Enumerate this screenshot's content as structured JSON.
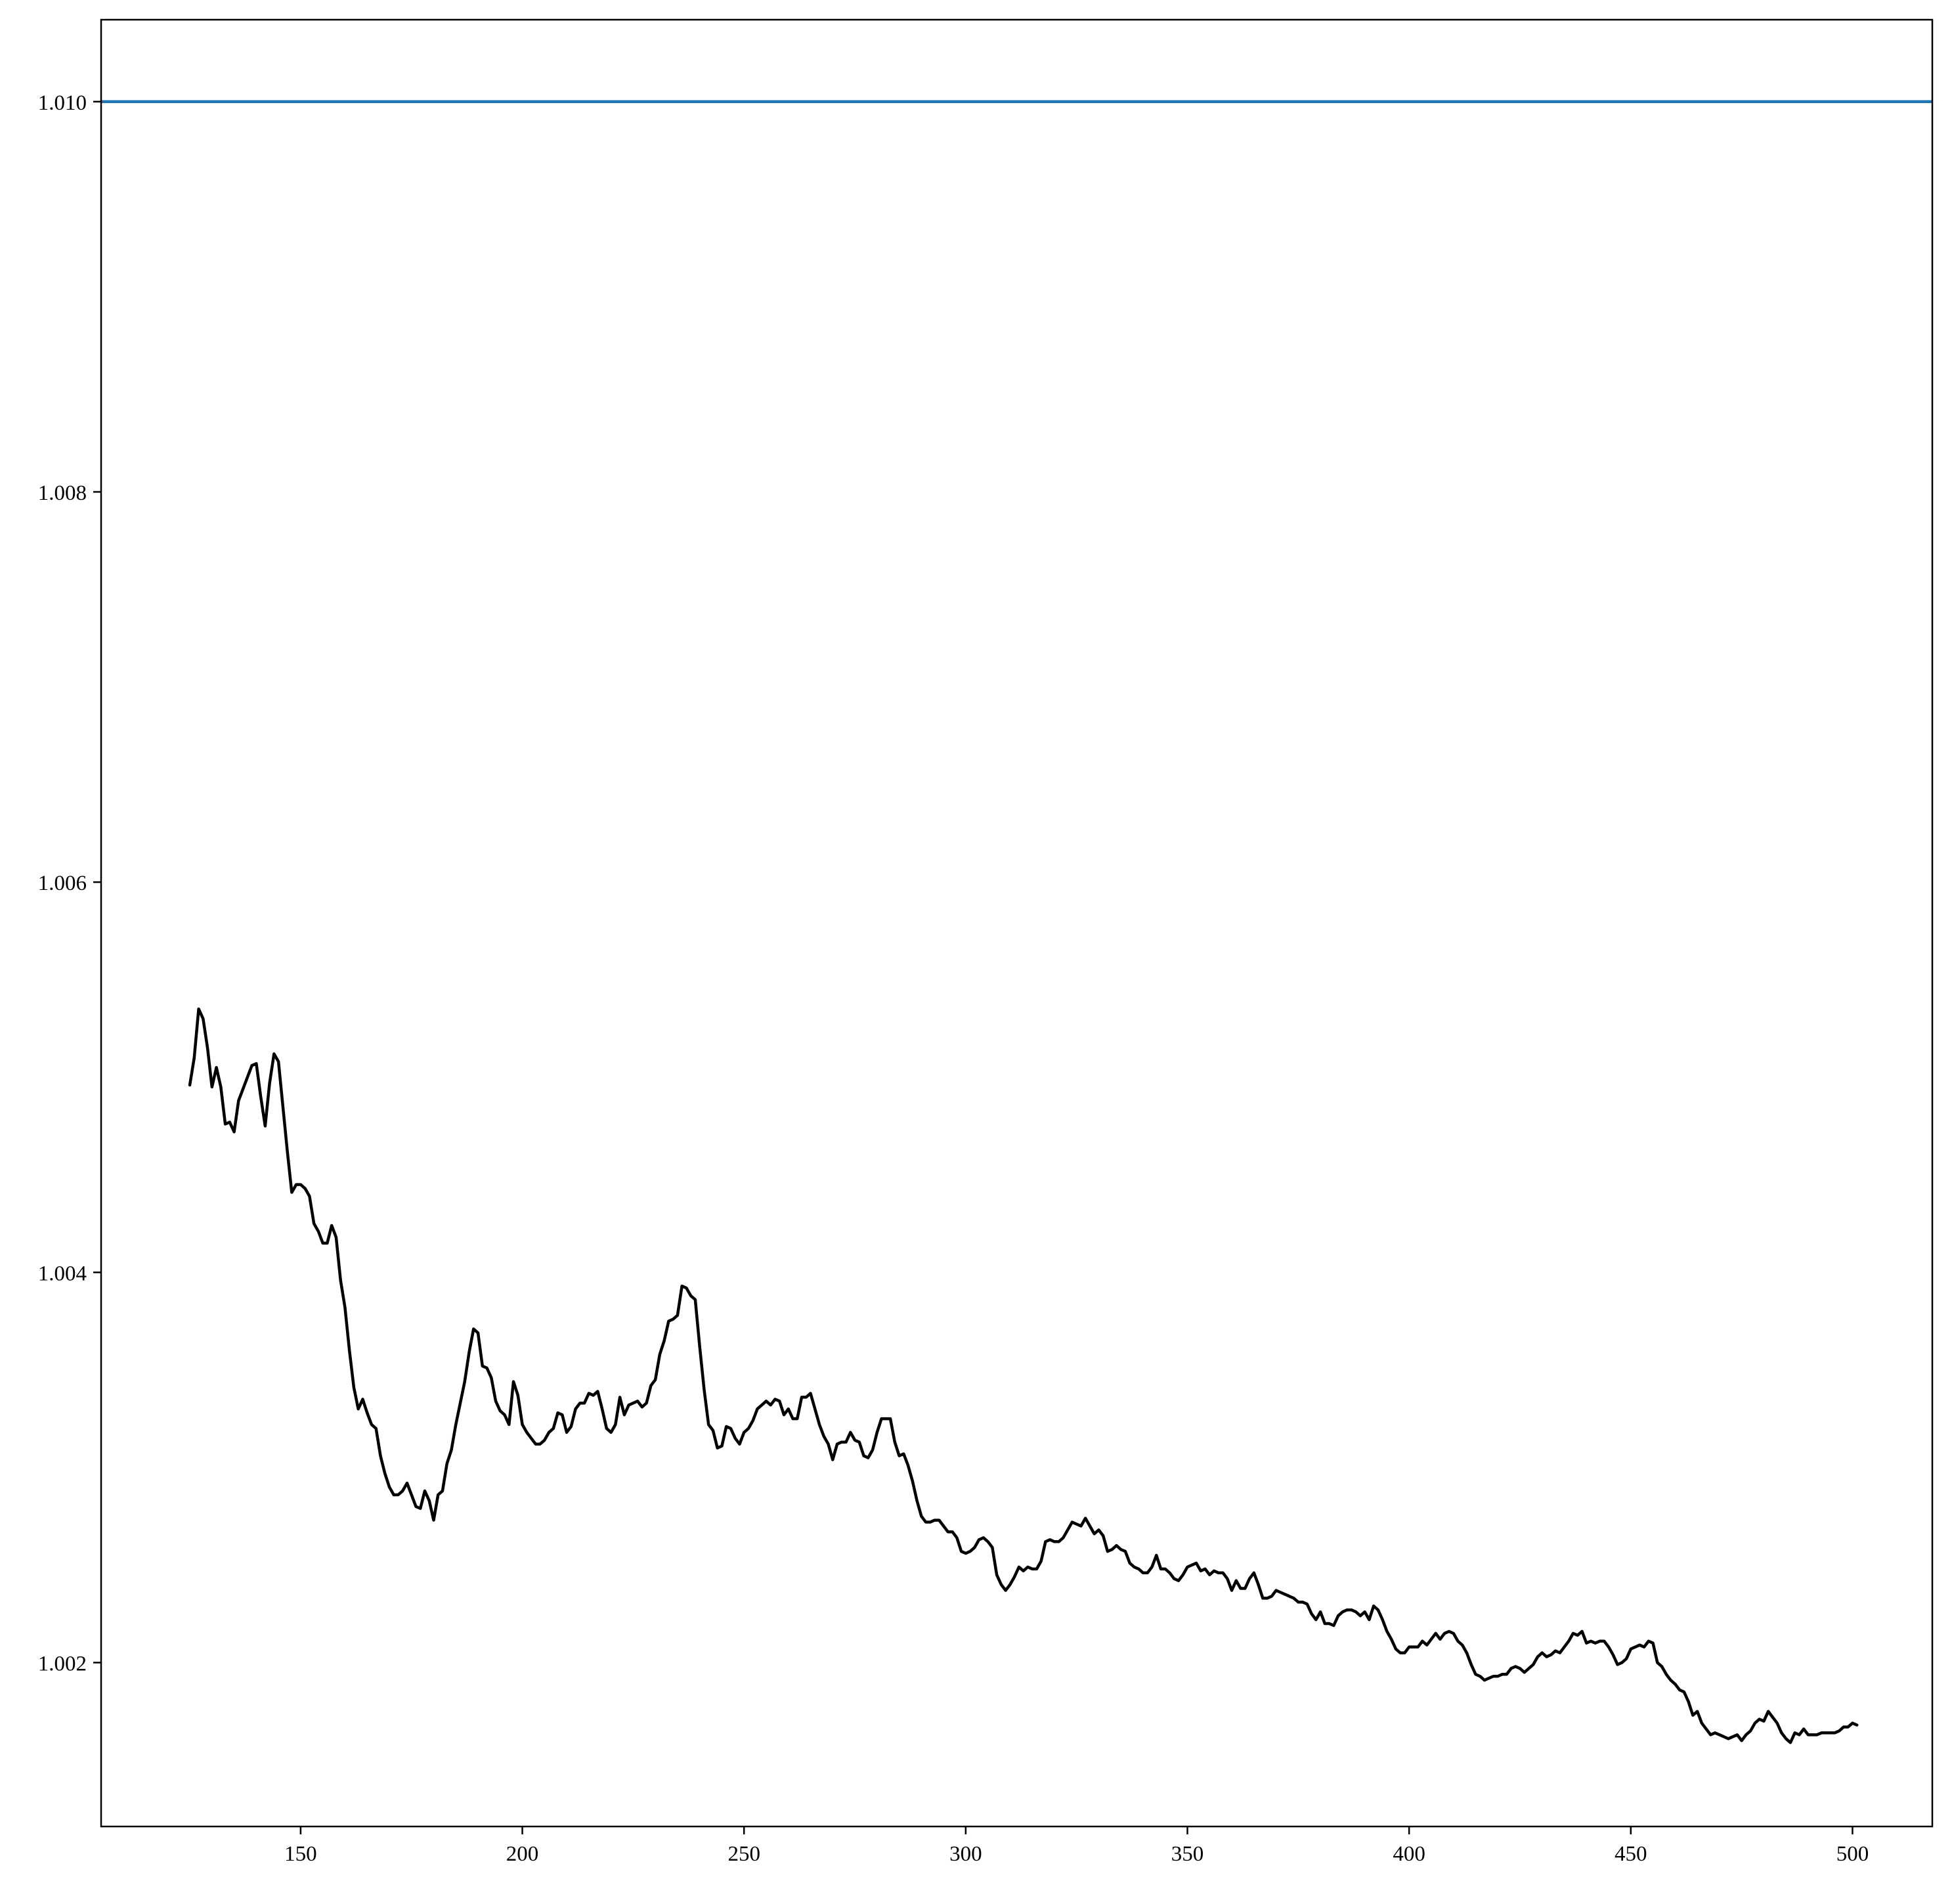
{
  "chart_data": {
    "type": "line",
    "title": "",
    "xlabel": "",
    "ylabel": "",
    "xlim": [
      105,
      518
    ],
    "ylim": [
      1.00116,
      1.01042
    ],
    "grid": false,
    "x_ticks": [
      150,
      200,
      250,
      300,
      350,
      400,
      450,
      500
    ],
    "x_tick_labels": [
      "150",
      "200",
      "250",
      "300",
      "350",
      "400",
      "450",
      "500"
    ],
    "y_ticks": [
      1.002,
      1.004,
      1.006,
      1.008,
      1.01
    ],
    "y_tick_labels": [
      "1.002",
      "1.004",
      "1.006",
      "1.008",
      "1.010"
    ],
    "hline": {
      "y": 1.01,
      "color": "#1f77b4"
    },
    "series": [
      {
        "color": "#000000",
        "x_start": 125,
        "x_step": 1,
        "values": [
          1.00496,
          1.0051,
          1.00535,
          1.0053,
          1.00515,
          1.00495,
          1.00505,
          1.00495,
          1.00476,
          1.00477,
          1.00472,
          1.00488,
          1.00494,
          1.005,
          1.00506,
          1.00507,
          1.0049,
          1.00475,
          1.00497,
          1.00512,
          1.00508,
          1.00485,
          1.00462,
          1.00441,
          1.00445,
          1.00445,
          1.00443,
          1.00439,
          1.00425,
          1.00421,
          1.00415,
          1.00415,
          1.00424,
          1.00418,
          1.00396,
          1.00382,
          1.0036,
          1.00341,
          1.0033,
          1.00335,
          1.00328,
          1.00322,
          1.0032,
          1.00306,
          1.00297,
          1.0029,
          1.00286,
          1.00286,
          1.00288,
          1.00292,
          1.00286,
          1.0028,
          1.00279,
          1.00288,
          1.00283,
          1.00273,
          1.00286,
          1.00288,
          1.00302,
          1.00309,
          1.00322,
          1.00333,
          1.00344,
          1.00359,
          1.00371,
          1.00369,
          1.00352,
          1.00351,
          1.00346,
          1.00334,
          1.00329,
          1.00327,
          1.00322,
          1.00344,
          1.00337,
          1.00322,
          1.00318,
          1.00315,
          1.00312,
          1.00312,
          1.00314,
          1.00318,
          1.0032,
          1.00328,
          1.00327,
          1.00318,
          1.00321,
          1.0033,
          1.00333,
          1.00333,
          1.00338,
          1.00337,
          1.00339,
          1.0033,
          1.0032,
          1.00318,
          1.00322,
          1.00336,
          1.00327,
          1.00332,
          1.00333,
          1.00334,
          1.00331,
          1.00333,
          1.00342,
          1.00345,
          1.00358,
          1.00365,
          1.00375,
          1.00376,
          1.00378,
          1.00393,
          1.00392,
          1.00388,
          1.00386,
          1.00362,
          1.0034,
          1.00322,
          1.00319,
          1.0031,
          1.00311,
          1.00321,
          1.0032,
          1.00315,
          1.00312,
          1.00318,
          1.0032,
          1.00324,
          1.0033,
          1.00332,
          1.00334,
          1.00332,
          1.00335,
          1.00334,
          1.00327,
          1.0033,
          1.00325,
          1.00325,
          1.00336,
          1.00336,
          1.00338,
          1.0033,
          1.00322,
          1.00316,
          1.00312,
          1.00304,
          1.00312,
          1.00313,
          1.00313,
          1.00318,
          1.00314,
          1.00313,
          1.00306,
          1.00305,
          1.00309,
          1.00318,
          1.00325,
          1.00325,
          1.00325,
          1.00313,
          1.00306,
          1.00307,
          1.00301,
          1.00293,
          1.00283,
          1.00275,
          1.00272,
          1.00272,
          1.00273,
          1.00273,
          1.0027,
          1.00267,
          1.00267,
          1.00264,
          1.00257,
          1.00256,
          1.00257,
          1.00259,
          1.00263,
          1.00264,
          1.00262,
          1.00259,
          1.00245,
          1.0024,
          1.00237,
          1.0024,
          1.00244,
          1.00249,
          1.00247,
          1.00249,
          1.00248,
          1.00248,
          1.00252,
          1.00262,
          1.00263,
          1.00262,
          1.00262,
          1.00264,
          1.00268,
          1.00272,
          1.00271,
          1.0027,
          1.00274,
          1.0027,
          1.00266,
          1.00268,
          1.00265,
          1.00257,
          1.00258,
          1.0026,
          1.00258,
          1.00257,
          1.00251,
          1.00249,
          1.00248,
          1.00246,
          1.00246,
          1.00249,
          1.00255,
          1.00248,
          1.00248,
          1.00246,
          1.00243,
          1.00242,
          1.00245,
          1.00249,
          1.0025,
          1.00251,
          1.00247,
          1.00248,
          1.00245,
          1.00247,
          1.00246,
          1.00246,
          1.00243,
          1.00237,
          1.00242,
          1.00238,
          1.00238,
          1.00243,
          1.00246,
          1.0024,
          1.00233,
          1.00233,
          1.00234,
          1.00237,
          1.00236,
          1.00235,
          1.00234,
          1.00233,
          1.00231,
          1.00231,
          1.0023,
          1.00225,
          1.00222,
          1.00226,
          1.0022,
          1.0022,
          1.00219,
          1.00224,
          1.00226,
          1.00227,
          1.00227,
          1.00226,
          1.00224,
          1.00226,
          1.00222,
          1.00229,
          1.00227,
          1.00222,
          1.00216,
          1.00212,
          1.00207,
          1.00205,
          1.00205,
          1.00208,
          1.00208,
          1.00208,
          1.00211,
          1.00209,
          1.00212,
          1.00215,
          1.00212,
          1.00215,
          1.00216,
          1.00215,
          1.00211,
          1.00209,
          1.00205,
          1.00199,
          1.00194,
          1.00193,
          1.00191,
          1.00192,
          1.00193,
          1.00193,
          1.00194,
          1.00194,
          1.00197,
          1.00198,
          1.00197,
          1.00195,
          1.00197,
          1.00199,
          1.00203,
          1.00205,
          1.00203,
          1.00204,
          1.00206,
          1.00205,
          1.00208,
          1.00211,
          1.00215,
          1.00214,
          1.00216,
          1.0021,
          1.00211,
          1.0021,
          1.00211,
          1.00211,
          1.00208,
          1.00204,
          1.00199,
          1.002,
          1.00202,
          1.00207,
          1.00208,
          1.00209,
          1.00208,
          1.00211,
          1.0021,
          1.002,
          1.00198,
          1.00194,
          1.00191,
          1.00189,
          1.00186,
          1.00185,
          1.0018,
          1.00173,
          1.00175,
          1.00169,
          1.00166,
          1.00163,
          1.00164,
          1.00163,
          1.00162,
          1.00161,
          1.00162,
          1.00163,
          1.0016,
          1.00163,
          1.00165,
          1.00169,
          1.00171,
          1.0017,
          1.00175,
          1.00172,
          1.00169,
          1.00164,
          1.00161,
          1.00159,
          1.00164,
          1.00163,
          1.00166,
          1.00163,
          1.00163,
          1.00163,
          1.00164,
          1.00164,
          1.00164,
          1.00164,
          1.00165,
          1.00167,
          1.00167,
          1.00169,
          1.00168
        ]
      }
    ]
  }
}
